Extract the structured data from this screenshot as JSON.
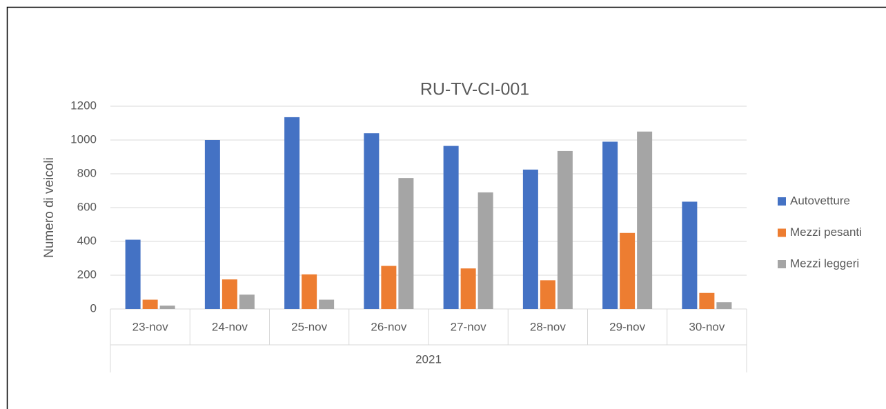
{
  "chart_data": {
    "type": "bar",
    "title": "RU-TV-CI-001",
    "y_label": "Numero di veicoli",
    "x_group_label": "2021",
    "categories": [
      "23-nov",
      "24-nov",
      "25-nov",
      "26-nov",
      "27-nov",
      "28-nov",
      "29-nov",
      "30-nov"
    ],
    "series": [
      {
        "name": "Autovetture",
        "color": "#4472c4",
        "values": [
          410,
          1000,
          1135,
          1040,
          965,
          825,
          990,
          635
        ]
      },
      {
        "name": "Mezzi pesanti",
        "color": "#ed7d31",
        "values": [
          55,
          175,
          205,
          255,
          240,
          170,
          450,
          95
        ]
      },
      {
        "name": "Mezzi leggeri",
        "color": "#a5a5a5",
        "values": [
          20,
          85,
          55,
          775,
          690,
          935,
          1050,
          40
        ]
      }
    ],
    "ylim": [
      0,
      1200
    ],
    "yticks": [
      0,
      200,
      400,
      600,
      800,
      1000,
      1200
    ],
    "grid": true,
    "legend": "right"
  }
}
